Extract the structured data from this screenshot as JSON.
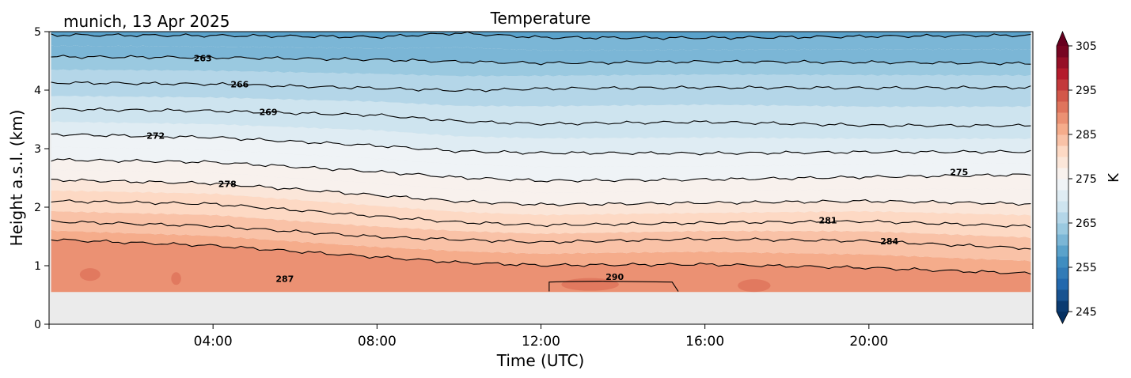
{
  "chart_data": {
    "type": "heatmap",
    "title": "Temperature",
    "subtitle": "munich, 13 Apr 2025",
    "xlabel": "Time (UTC)",
    "ylabel": "Height a.s.l. (km)",
    "colorbar_label": "K",
    "x_unit": "hours UTC",
    "xlim": [
      0,
      24
    ],
    "ylim": [
      0,
      5
    ],
    "x_ticks": [
      {
        "value": 4,
        "label": "04:00"
      },
      {
        "value": 8,
        "label": "08:00"
      },
      {
        "value": 12,
        "label": "12:00"
      },
      {
        "value": 16,
        "label": "16:00"
      },
      {
        "value": 20,
        "label": "20:00"
      }
    ],
    "y_ticks": [
      {
        "value": 0,
        "label": "0"
      },
      {
        "value": 1,
        "label": "1"
      },
      {
        "value": 2,
        "label": "2"
      },
      {
        "value": 3,
        "label": "3"
      },
      {
        "value": 4,
        "label": "4"
      },
      {
        "value": 5,
        "label": "5"
      }
    ],
    "colorbar": {
      "colormap": "RdBu_r",
      "range": [
        245,
        305
      ],
      "step": 2.5,
      "extend": "both",
      "ticks": [
        {
          "value": 245,
          "label": "245"
        },
        {
          "value": 255,
          "label": "255"
        },
        {
          "value": 265,
          "label": "265"
        },
        {
          "value": 275,
          "label": "275"
        },
        {
          "value": 285,
          "label": "285"
        },
        {
          "value": 295,
          "label": "295"
        },
        {
          "value": 305,
          "label": "305"
        }
      ]
    },
    "data_bottom_km": 0.55,
    "no_data_color": "#ebebeb",
    "contours": [
      {
        "level": 260,
        "heights_km": [
          [
            0,
            4.95
          ],
          [
            4,
            4.93
          ],
          [
            8,
            4.9
          ],
          [
            10,
            4.97
          ],
          [
            12,
            4.9
          ],
          [
            16,
            4.9
          ],
          [
            20,
            4.92
          ],
          [
            24,
            4.93
          ]
        ]
      },
      {
        "level": 263,
        "heights_km": [
          [
            0,
            4.57
          ],
          [
            4,
            4.55
          ],
          [
            8,
            4.52
          ],
          [
            10,
            4.49
          ],
          [
            12,
            4.47
          ],
          [
            16,
            4.49
          ],
          [
            20,
            4.47
          ],
          [
            24,
            4.45
          ]
        ]
      },
      {
        "level": 266,
        "heights_km": [
          [
            0,
            4.12
          ],
          [
            4,
            4.1
          ],
          [
            8,
            4.04
          ],
          [
            10,
            4.0
          ],
          [
            12,
            4.03
          ],
          [
            16,
            4.04
          ],
          [
            20,
            4.03
          ],
          [
            24,
            4.05
          ]
        ]
      },
      {
        "level": 269,
        "heights_km": [
          [
            0,
            3.67
          ],
          [
            4,
            3.65
          ],
          [
            8,
            3.58
          ],
          [
            10,
            3.47
          ],
          [
            12,
            3.42
          ],
          [
            16,
            3.45
          ],
          [
            20,
            3.4
          ],
          [
            24,
            3.4
          ]
        ]
      },
      {
        "level": 272,
        "heights_km": [
          [
            0,
            3.25
          ],
          [
            4,
            3.2
          ],
          [
            8,
            3.05
          ],
          [
            10,
            2.95
          ],
          [
            12,
            2.92
          ],
          [
            16,
            2.92
          ],
          [
            20,
            2.95
          ],
          [
            24,
            2.95
          ]
        ]
      },
      {
        "level": 275,
        "heights_km": [
          [
            0,
            2.82
          ],
          [
            4,
            2.77
          ],
          [
            8,
            2.6
          ],
          [
            10,
            2.5
          ],
          [
            12,
            2.45
          ],
          [
            16,
            2.48
          ],
          [
            20,
            2.52
          ],
          [
            24,
            2.55
          ]
        ]
      },
      {
        "level": 278,
        "heights_km": [
          [
            0,
            2.47
          ],
          [
            4,
            2.4
          ],
          [
            8,
            2.2
          ],
          [
            10,
            2.1
          ],
          [
            12,
            2.05
          ],
          [
            16,
            2.08
          ],
          [
            20,
            2.1
          ],
          [
            24,
            2.05
          ]
        ]
      },
      {
        "level": 281,
        "heights_km": [
          [
            0,
            2.1
          ],
          [
            4,
            2.05
          ],
          [
            8,
            1.85
          ],
          [
            10,
            1.75
          ],
          [
            12,
            1.7
          ],
          [
            16,
            1.73
          ],
          [
            20,
            1.75
          ],
          [
            24,
            1.67
          ]
        ]
      },
      {
        "level": 284,
        "heights_km": [
          [
            0,
            1.75
          ],
          [
            4,
            1.68
          ],
          [
            8,
            1.5
          ],
          [
            10,
            1.45
          ],
          [
            12,
            1.4
          ],
          [
            16,
            1.45
          ],
          [
            20,
            1.42
          ],
          [
            24,
            1.3
          ]
        ]
      },
      {
        "level": 287,
        "heights_km": [
          [
            0,
            1.45
          ],
          [
            4,
            1.35
          ],
          [
            8,
            1.15
          ],
          [
            10,
            1.05
          ],
          [
            12,
            1.0
          ],
          [
            16,
            1.02
          ],
          [
            20,
            0.97
          ],
          [
            24,
            0.87
          ]
        ]
      }
    ],
    "contour_labels": [
      {
        "text": "263",
        "x": 3.75,
        "y": 4.55
      },
      {
        "text": "266",
        "x": 4.65,
        "y": 4.1
      },
      {
        "text": "269",
        "x": 5.35,
        "y": 3.63
      },
      {
        "text": "272",
        "x": 2.6,
        "y": 3.22
      },
      {
        "text": "278",
        "x": 4.35,
        "y": 2.4
      },
      {
        "text": "275",
        "x": 22.2,
        "y": 2.6
      },
      {
        "text": "281",
        "x": 19.0,
        "y": 1.78
      },
      {
        "text": "284",
        "x": 20.5,
        "y": 1.42
      },
      {
        "text": "287",
        "x": 5.75,
        "y": 0.78
      },
      {
        "text": "290",
        "x": 13.8,
        "y": 0.81
      }
    ]
  }
}
